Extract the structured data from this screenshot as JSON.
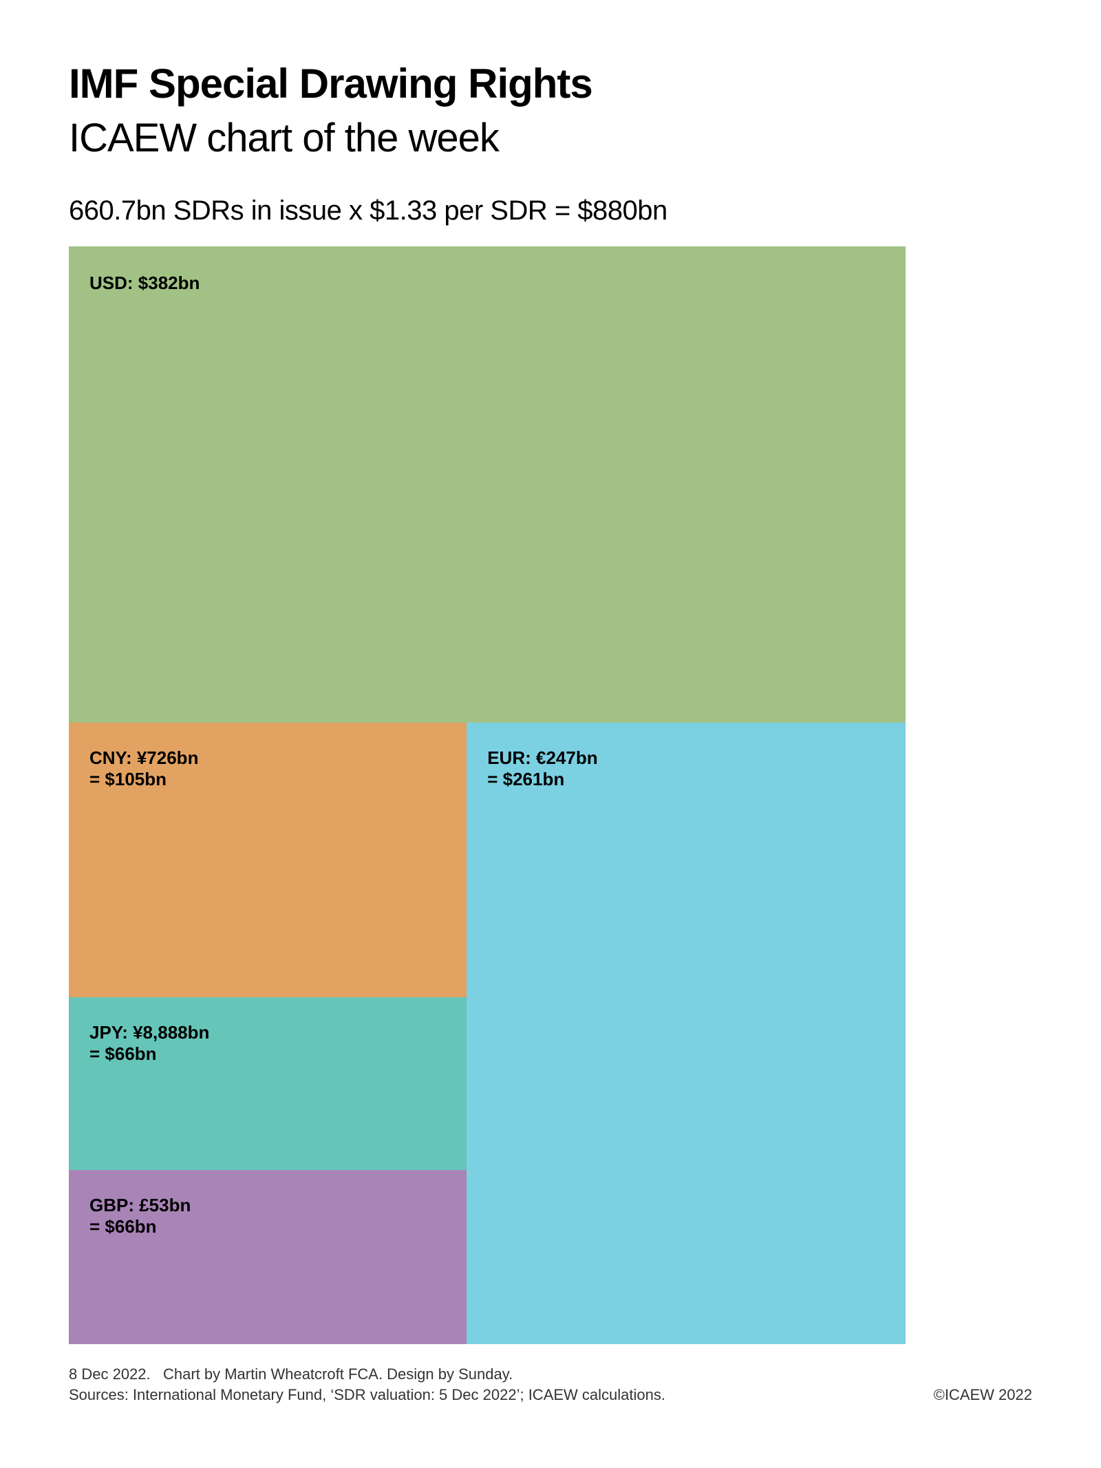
{
  "header": {
    "title": "IMF Special Drawing Rights",
    "subtitle": "ICAEW chart of the week",
    "headline": "660.7bn SDRs in issue x $1.33 per SDR = $880bn"
  },
  "chart_data": {
    "type": "treemap",
    "total_usd_bn": 880,
    "items": [
      {
        "name": "USD",
        "label1": "USD: $382bn",
        "label2": "",
        "usd_bn": 382,
        "color": "#a1c284"
      },
      {
        "name": "CNY",
        "label1": "CNY: ¥726bn",
        "label2": "= $105bn",
        "usd_bn": 105,
        "color": "#e2a262"
      },
      {
        "name": "JPY",
        "label1": "JPY: ¥8,888bn",
        "label2": "= $66bn",
        "usd_bn": 66,
        "color": "#66c5b9"
      },
      {
        "name": "GBP",
        "label1": "GBP: £53bn",
        "label2": "= $66bn",
        "usd_bn": 66,
        "color": "#a984b7"
      },
      {
        "name": "EUR",
        "label1": "EUR: €247bn",
        "label2": "= $261bn",
        "usd_bn": 261,
        "color": "#7bd0e2"
      }
    ]
  },
  "footer": {
    "line1": "8 Dec 2022.   Chart by Martin Wheatcroft FCA. Design by Sunday.",
    "line2": "Sources: International Monetary Fund, ‘SDR valuation: 5 Dec 2022’; ICAEW calculations.",
    "copyright": "©ICAEW 2022"
  }
}
